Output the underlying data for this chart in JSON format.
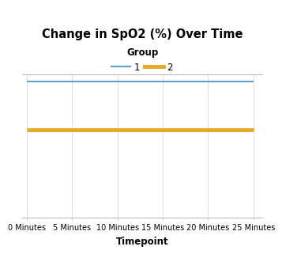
{
  "title": "Change in SpO2 (%) Over Time",
  "xlabel": "Timepoint",
  "ylabel": "",
  "timepoints": [
    0,
    5,
    10,
    15,
    20,
    25
  ],
  "tick_labels": [
    "0 Minutes",
    "5 Minutes",
    "10 Minutes",
    "15 Minutes",
    "20 Minutes",
    "25 Minutes"
  ],
  "group1_values": [
    99.98,
    99.98,
    99.98,
    99.98,
    99.98,
    99.98
  ],
  "group2_values": [
    99.1,
    99.1,
    99.1,
    99.1,
    99.1,
    99.1
  ],
  "group1_color": "#5ba3c9",
  "group2_color": "#e8a820",
  "group1_linewidth": 1.5,
  "group2_linewidth": 3.5,
  "ylim": [
    97.5,
    100.1
  ],
  "xlim": [
    -0.5,
    26
  ],
  "legend_title": "Group",
  "legend_labels": [
    "1",
    "2"
  ],
  "background_color": "#ffffff",
  "grid_color": "#dddddd",
  "title_fontsize": 10.5,
  "label_fontsize": 8.5,
  "tick_fontsize": 7
}
